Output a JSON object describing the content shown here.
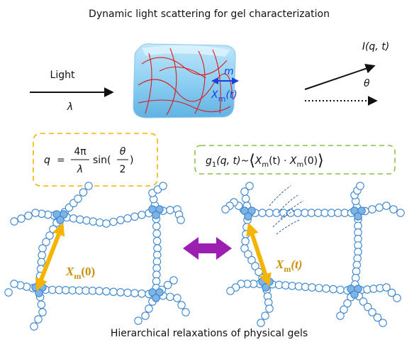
{
  "title": "Dynamic light scattering for gel characterization",
  "footer": "Hierarchical relaxations of physical gels",
  "incident": {
    "label": "Light",
    "wavelength": "λ"
  },
  "gel": {
    "mesh": "m",
    "symbol": "X",
    "sub": "m",
    "arg": "(t)"
  },
  "scattered": {
    "intensity": "I(q, t)",
    "angle": "θ"
  },
  "formula_q": {
    "lhs": "q",
    "eq": "=",
    "num": "4π",
    "den": "λ",
    "fn": "sin(",
    "theta": "θ",
    "two": "2",
    "close": ")"
  },
  "formula_g": {
    "fn": "g",
    "sub": "1",
    "args": "(q, t)~",
    "open": "⟨",
    "x1": "X",
    "x1_sub": "m",
    "x1_arg": "(t) · ",
    "x2": "X",
    "x2_sub": "m",
    "x2_arg": "(0)",
    "close": "⟩"
  },
  "network_left": {
    "symbol": "X",
    "sub": "m",
    "arg": "(0)"
  },
  "network_right": {
    "symbol": "X",
    "sub": "m",
    "arg": "(t)"
  }
}
